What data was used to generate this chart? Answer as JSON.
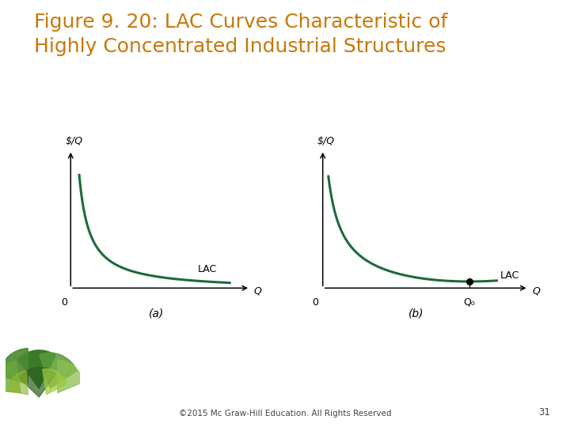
{
  "title_line1": "Figure 9. 20: LAC Curves Characteristic of",
  "title_line2": "Highly Concentrated Industrial Structures",
  "title_color": "#C8780A",
  "background_color": "#FFFFFF",
  "curve_color": "#1B6B3A",
  "curve_linewidth": 2.2,
  "axes_color": "#000000",
  "label_a": "(a)",
  "label_b": "(b)",
  "lac_label": "LAC",
  "q_label": "Q",
  "dollar_q_label": "$/Q",
  "zero_label": "0",
  "q0_label": "Q₀",
  "footer_text": "©2015 Mc Graw-Hill Education. All Rights Reserved",
  "page_number": "31",
  "dot_color": "#000000",
  "title_fontsize": 18,
  "label_fontsize": 9,
  "sublabel_fontsize": 10
}
